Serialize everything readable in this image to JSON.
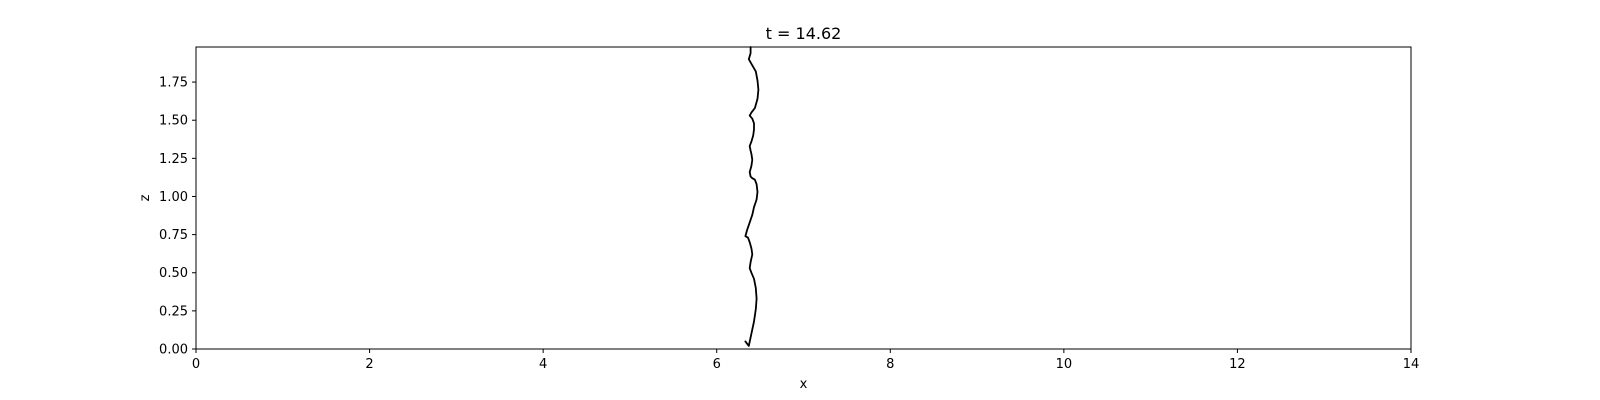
{
  "chart_data": {
    "type": "line",
    "title": "t = 14.62",
    "xlabel": "x",
    "ylabel": "z",
    "xlim": [
      0,
      14
    ],
    "ylim": [
      0,
      1.98
    ],
    "xticks": [
      0,
      2,
      4,
      6,
      8,
      10,
      12,
      14
    ],
    "xtick_labels": [
      "0",
      "2",
      "4",
      "6",
      "8",
      "10",
      "12",
      "14"
    ],
    "yticks": [
      0.0,
      0.25,
      0.5,
      0.75,
      1.0,
      1.25,
      1.5,
      1.75
    ],
    "ytick_labels": [
      "0.00",
      "0.25",
      "0.50",
      "0.75",
      "1.00",
      "1.25",
      "1.50",
      "1.75"
    ],
    "grid": false,
    "series": [
      {
        "color": "#000000",
        "x": [
          6.33,
          6.37,
          6.4,
          6.43,
          6.45,
          6.46,
          6.45,
          6.43,
          6.4,
          6.38,
          6.39,
          6.41,
          6.4,
          6.38,
          6.36,
          6.33,
          6.35,
          6.38,
          6.41,
          6.43,
          6.46,
          6.47,
          6.46,
          6.44,
          6.41,
          6.39,
          6.38,
          6.4,
          6.41,
          6.4,
          6.39,
          6.38,
          6.4,
          6.42,
          6.43,
          6.43,
          6.41,
          6.38,
          6.4,
          6.44,
          6.47,
          6.48,
          6.47,
          6.45,
          6.4,
          6.37,
          6.39,
          6.39
        ],
        "y": [
          0.05,
          0.02,
          0.1,
          0.18,
          0.26,
          0.33,
          0.4,
          0.46,
          0.5,
          0.53,
          0.57,
          0.62,
          0.66,
          0.7,
          0.73,
          0.74,
          0.78,
          0.83,
          0.88,
          0.93,
          0.98,
          1.03,
          1.08,
          1.11,
          1.12,
          1.13,
          1.16,
          1.2,
          1.24,
          1.28,
          1.3,
          1.33,
          1.36,
          1.4,
          1.44,
          1.48,
          1.51,
          1.53,
          1.55,
          1.58,
          1.64,
          1.7,
          1.76,
          1.82,
          1.87,
          1.9,
          1.94,
          1.98
        ]
      }
    ]
  }
}
